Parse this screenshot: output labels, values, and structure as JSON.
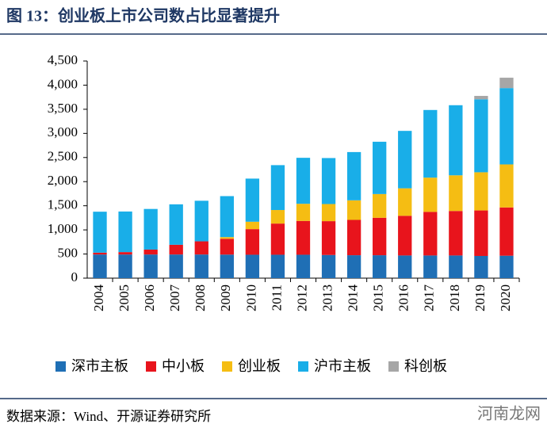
{
  "chart_data": {
    "type": "bar",
    "stacked": true,
    "title": "图 13：创业板上市公司数占比显著提升",
    "source": "数据来源：Wind、开源证券研究所",
    "watermark": "河南龙网",
    "categories": [
      "2004",
      "2005",
      "2006",
      "2007",
      "2008",
      "2009",
      "2010",
      "2011",
      "2012",
      "2013",
      "2014",
      "2015",
      "2016",
      "2017",
      "2018",
      "2019",
      "2020"
    ],
    "series": [
      {
        "name": "深市主板",
        "color": "#1f6fb5",
        "values": [
          490,
          490,
          490,
          490,
          490,
          488,
          485,
          485,
          485,
          480,
          475,
          475,
          470,
          470,
          470,
          460,
          465
        ]
      },
      {
        "name": "中小板",
        "color": "#e8141c",
        "values": [
          38,
          50,
          102,
          202,
          273,
          327,
          531,
          646,
          701,
          701,
          732,
          776,
          822,
          903,
          922,
          943,
          1000
        ]
      },
      {
        "name": "创业板",
        "color": "#f5bd13",
        "values": [
          null,
          null,
          null,
          null,
          null,
          36,
          153,
          281,
          355,
          355,
          406,
          492,
          570,
          710,
          739,
          791,
          892
        ]
      },
      {
        "name": "沪市主板",
        "color": "#19aee8",
        "values": [
          849,
          841,
          842,
          838,
          841,
          849,
          894,
          930,
          953,
          953,
          1000,
          1084,
          1190,
          1402,
          1453,
          1513,
          1582
        ]
      },
      {
        "name": "科创板",
        "color": "#a6a6a6",
        "values": [
          null,
          null,
          null,
          null,
          null,
          null,
          null,
          null,
          null,
          null,
          null,
          null,
          null,
          null,
          null,
          70,
          215
        ]
      }
    ],
    "ylim": [
      0,
      4500
    ],
    "yticks": [
      0,
      500,
      {
        "value": 1000,
        "label": "1,000"
      },
      {
        "value": 1500,
        "label": "1,500"
      },
      {
        "value": 2000,
        "label": "2,000"
      },
      {
        "value": 2500,
        "label": "2,500"
      },
      {
        "value": 3000,
        "label": "3,000"
      },
      {
        "value": 3500,
        "label": "3,500"
      },
      {
        "value": 4000,
        "label": "4,000"
      },
      {
        "value": 4500,
        "label": "4,500"
      }
    ],
    "grid": false
  }
}
